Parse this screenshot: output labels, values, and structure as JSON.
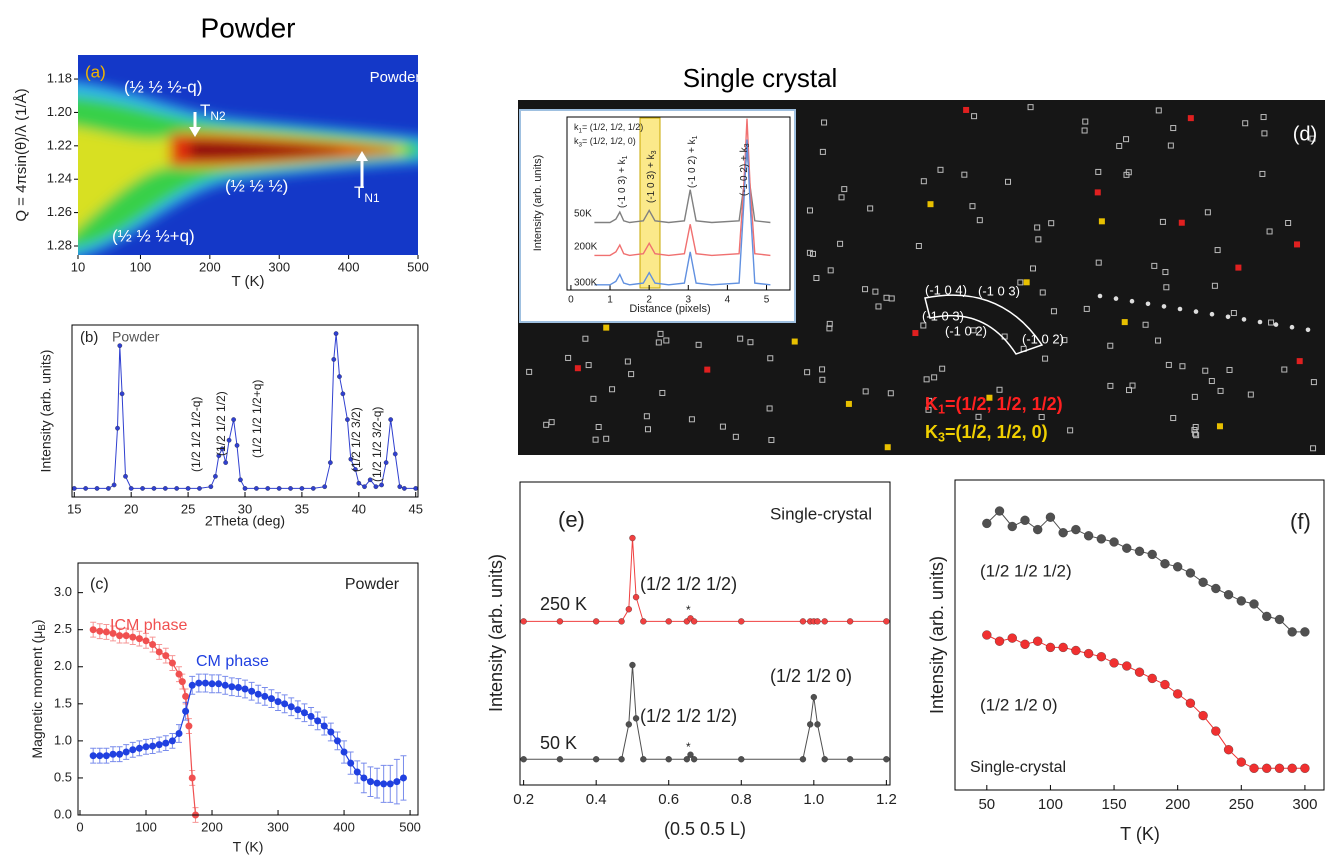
{
  "headings": [
    "Powder",
    "Single crystal"
  ],
  "diffraction_image": {
    "annotations": [
      "(d)",
      "(-1 0 4)",
      "(-1 0 3)",
      "(-1 0 3)",
      "(-1 0 2)",
      "(-1 0 2)",
      {
        "text": "K",
        "sub": "1",
        "tail": "=(1/2, 1/2, 1/2)"
      },
      {
        "text": "K",
        "sub": "3",
        "tail": "=(1/2, 1/2, 0)"
      }
    ]
  },
  "chart_data": [
    {
      "type": "heatmap",
      "xlabel": "T (K)",
      "ylabel": "Q = 4πsin(θ)/λ (1/Å)",
      "xlim": [
        10,
        500
      ],
      "xticks": [
        10,
        100,
        200,
        300,
        400,
        500
      ],
      "ylim": [
        1.2854,
        1.1656
      ],
      "yticks": [
        1.18,
        {
          "value": 1.2,
          "label": "1.20"
        },
        1.22,
        1.24,
        1.26,
        1.28
      ],
      "annotations": [
        "(a)",
        "Powder",
        "(½ ½ ½-q)",
        {
          "text": "T",
          "sub": "N2"
        },
        "(½ ½ ½)",
        {
          "text": "T",
          "sub": "N1"
        },
        "(½ ½ ½+q)"
      ]
    },
    {
      "type": "line",
      "xlabel": "2Theta (deg)",
      "ylabel": "Intensity (arb. units)",
      "marker": true,
      "xlim": [
        14.8,
        45.2
      ],
      "xticks": [
        15,
        20,
        25,
        30,
        35,
        40,
        45
      ],
      "ylim": [
        0,
        100
      ],
      "x": [
        15,
        16,
        17,
        18,
        18.5,
        18.8,
        19,
        19.2,
        19.5,
        20,
        21,
        22,
        23,
        24,
        25,
        26,
        27,
        27.4,
        27.7,
        28,
        28.3,
        28.6,
        29,
        29.3,
        29.6,
        30,
        31,
        32,
        33,
        34,
        35,
        36,
        37,
        37.5,
        37.8,
        38,
        38.3,
        38.6,
        39,
        39.3,
        39.7,
        40,
        40.5,
        41,
        41.5,
        42,
        42.4,
        42.8,
        43.2,
        43.6,
        44,
        45
      ],
      "series": [
        {
          "color": "#3040d0",
          "values": [
            5,
            5,
            5,
            5,
            7,
            40,
            88,
            60,
            12,
            5,
            5,
            5,
            5,
            5,
            5,
            5,
            6,
            12,
            24,
            28,
            20,
            33,
            45,
            30,
            10,
            5,
            5,
            5,
            5,
            5,
            5,
            5,
            6,
            20,
            80,
            95,
            70,
            60,
            45,
            22,
            16,
            8,
            6,
            10,
            6,
            7,
            20,
            45,
            25,
            6,
            5,
            5
          ]
        }
      ],
      "annotations": [
        "(b)",
        "Powder",
        "(1/2 1/2 1/2-q)",
        "(1/2 1/2 1/2)",
        "(1/2 1/2 1/2+q)",
        "(1/2 1/2 3/2)",
        "(1/2 1/2 3/2-q)"
      ]
    },
    {
      "type": "errorbar",
      "xlabel": "T (K)",
      "ylabel": {
        "text": "Magnetic moment (μ",
        "sub": "B",
        "tail": ")"
      },
      "xlim": [
        -3,
        512
      ],
      "xticks": [
        0,
        100,
        200,
        300,
        400,
        500
      ],
      "ylim": [
        0,
        3.4
      ],
      "yticks": [
        {
          "value": 0,
          "label": "0.0"
        },
        0.5,
        {
          "value": 1,
          "label": "1.0"
        },
        1.5,
        {
          "value": 2,
          "label": "2.0"
        },
        2.5,
        {
          "value": 3,
          "label": "3.0"
        }
      ],
      "series": [
        {
          "name": "ICM phase",
          "color": "#f05050",
          "x": [
            20,
            30,
            40,
            50,
            60,
            70,
            80,
            90,
            100,
            110,
            120,
            130,
            140,
            150,
            155,
            160,
            165,
            170,
            175
          ],
          "values": [
            2.5,
            2.48,
            2.47,
            2.45,
            2.42,
            2.42,
            2.4,
            2.38,
            2.35,
            2.3,
            2.2,
            2.15,
            2.05,
            1.9,
            1.8,
            1.6,
            1.2,
            0.5,
            0.0
          ],
          "errors": [
            0.1,
            0.1,
            0.1,
            0.1,
            0.1,
            0.1,
            0.1,
            0.1,
            0.1,
            0.1,
            0.1,
            0.1,
            0.1,
            0.1,
            0.1,
            0.1,
            0.1,
            0.1,
            0.1
          ]
        },
        {
          "name": "CM phase",
          "color": "#2040e0",
          "x": [
            20,
            30,
            40,
            50,
            60,
            70,
            80,
            90,
            100,
            110,
            120,
            130,
            140,
            150,
            160,
            170,
            180,
            190,
            200,
            210,
            220,
            230,
            240,
            250,
            260,
            270,
            280,
            290,
            300,
            310,
            320,
            330,
            340,
            350,
            360,
            370,
            380,
            390,
            400,
            410,
            420,
            430,
            440,
            450,
            460,
            470,
            480,
            490
          ],
          "values": [
            0.8,
            0.8,
            0.8,
            0.82,
            0.82,
            0.85,
            0.88,
            0.9,
            0.92,
            0.93,
            0.95,
            0.97,
            1.0,
            1.1,
            1.4,
            1.75,
            1.78,
            1.78,
            1.77,
            1.77,
            1.75,
            1.73,
            1.72,
            1.7,
            1.67,
            1.63,
            1.6,
            1.57,
            1.53,
            1.5,
            1.46,
            1.42,
            1.38,
            1.33,
            1.27,
            1.2,
            1.12,
            1.0,
            0.85,
            0.7,
            0.58,
            0.5,
            0.45,
            0.43,
            0.42,
            0.42,
            0.45,
            0.5
          ],
          "errors": [
            0.1,
            0.1,
            0.1,
            0.1,
            0.1,
            0.1,
            0.1,
            0.1,
            0.1,
            0.1,
            0.1,
            0.1,
            0.1,
            0.12,
            0.12,
            0.12,
            0.12,
            0.12,
            0.12,
            0.12,
            0.12,
            0.12,
            0.12,
            0.12,
            0.12,
            0.12,
            0.12,
            0.12,
            0.12,
            0.12,
            0.12,
            0.12,
            0.12,
            0.12,
            0.12,
            0.12,
            0.12,
            0.12,
            0.15,
            0.15,
            0.15,
            0.2,
            0.2,
            0.2,
            0.25,
            0.25,
            0.3,
            0.3
          ]
        }
      ],
      "annotations": [
        "(c)",
        "Powder"
      ]
    },
    {
      "type": "line",
      "xlabel": "Distance (pixels)",
      "ylabel": "Intensity (arb. units)",
      "marker": false,
      "xlim": [
        -0.1,
        5.6
      ],
      "xticks": [
        0,
        1,
        2,
        3,
        4,
        5
      ],
      "ylim": [
        0,
        100
      ],
      "x": [
        0.6,
        1.0,
        1.15,
        1.25,
        1.35,
        1.5,
        1.85,
        2.0,
        2.15,
        2.5,
        2.9,
        3.05,
        3.2,
        3.6,
        4.3,
        4.42,
        4.5,
        4.58,
        4.7,
        5.1
      ],
      "series": [
        {
          "name": "50K",
          "color": "#808080",
          "values": [
            39,
            39,
            41,
            45,
            40,
            39,
            40,
            46,
            40,
            39,
            40,
            58,
            40,
            39,
            40,
            60,
            81,
            60,
            40,
            39
          ]
        },
        {
          "name": "200K",
          "color": "#f07070",
          "values": [
            20,
            20,
            22,
            26,
            21,
            20,
            21,
            27,
            21,
            20,
            21,
            38,
            21,
            20,
            21,
            60,
            99,
            60,
            21,
            20
          ]
        },
        {
          "name": "300K",
          "color": "#6090e0",
          "values": [
            3,
            3,
            5,
            9,
            4,
            3,
            4,
            10,
            4,
            3,
            4,
            22,
            4,
            3,
            4,
            50,
            87,
            50,
            4,
            3
          ]
        }
      ],
      "annotations": [
        {
          "text": "k",
          "sub": "1",
          "tail": "= (1/2, 1/2, 1/2)"
        },
        {
          "text": "k",
          "sub": "3",
          "tail": "= (1/2, 1/2, 0)"
        },
        {
          "text": "(-1 0 3) + k",
          "sub": "1"
        },
        {
          "text": "(-1 0 3) + k",
          "sub": "3"
        },
        {
          "text": "(-1 0 2) + k",
          "sub": "1"
        },
        {
          "text": "(-1 0 2) + k",
          "sub": "3"
        }
      ]
    },
    {
      "type": "line",
      "xlabel": "(0.5 0.5 L)",
      "ylabel": "Intensity (arb. units)",
      "marker": true,
      "xlim": [
        0.19,
        1.21
      ],
      "xticks": [
        0.2,
        0.4,
        0.6,
        0.8,
        {
          "value": 1,
          "label": "1.0"
        },
        1.2
      ],
      "ylim": [
        0,
        100
      ],
      "x": [
        0.2,
        0.3,
        0.4,
        0.47,
        0.49,
        0.5,
        0.51,
        0.53,
        0.6,
        0.65,
        0.66,
        0.67,
        0.8,
        0.97,
        0.99,
        1.0,
        1.01,
        1.03,
        1.1,
        1.2
      ],
      "series": [
        {
          "name": "250 K",
          "color": "#f04040",
          "values": [
            54,
            54,
            54,
            54,
            58,
            81.5,
            62,
            54,
            54,
            54,
            55,
            54,
            54,
            54,
            54,
            54,
            54,
            54,
            54,
            54
          ]
        },
        {
          "name": "50 K",
          "color": "#505050",
          "values": [
            8.5,
            8.5,
            8.5,
            8.5,
            20,
            39.6,
            22,
            8.5,
            8.5,
            8.5,
            10,
            8.5,
            8.5,
            8.5,
            20,
            29,
            20,
            8.5,
            8.5,
            8.5
          ]
        }
      ],
      "annotations": [
        "(e)",
        "Single-crystal",
        "(1/2 1/2 1/2)",
        "(1/2 1/2 1/2)",
        "(1/2 1/2 0)",
        "*",
        "*"
      ]
    },
    {
      "type": "line",
      "xlabel": "T (K)",
      "ylabel": "Intensity (arb. units)",
      "marker": true,
      "xlim": [
        25,
        315
      ],
      "xticks": [
        50,
        100,
        150,
        200,
        250,
        300
      ],
      "ylim": [
        0,
        100
      ],
      "x": [
        50,
        60,
        70,
        80,
        90,
        100,
        110,
        120,
        130,
        140,
        150,
        160,
        170,
        180,
        190,
        200,
        210,
        220,
        230,
        240,
        250,
        260,
        270,
        280,
        290,
        300
      ],
      "series": [
        {
          "name": "(1/2 1/2 1/2)",
          "color": "#505050",
          "values": [
            86,
            90,
            85,
            87,
            84,
            88,
            83,
            84,
            82,
            81,
            80,
            78,
            77,
            76,
            73,
            72,
            70,
            67,
            65,
            63,
            61,
            60,
            56,
            55,
            51,
            51
          ]
        },
        {
          "name": "(1/2 1/2 0)",
          "color": "#f03030",
          "values": [
            50,
            48,
            49,
            47,
            48,
            46,
            46,
            45,
            44,
            43,
            41,
            40,
            38,
            36,
            34,
            31,
            28,
            24,
            19,
            13,
            9,
            7,
            7,
            7,
            7,
            7
          ]
        }
      ],
      "annotations": [
        "(f)",
        "Single-crystal"
      ]
    }
  ]
}
